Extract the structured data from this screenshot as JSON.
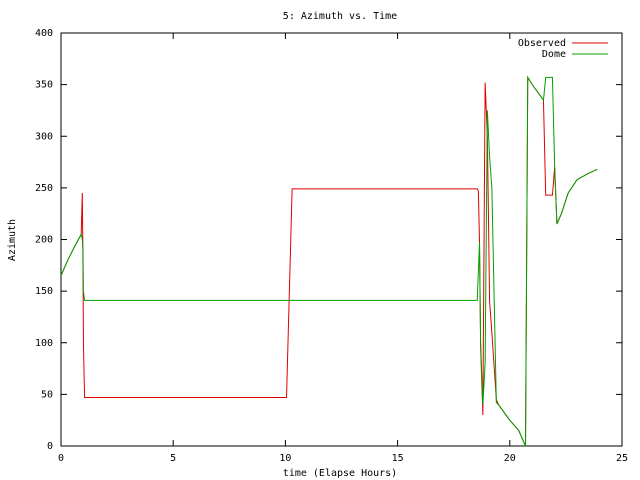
{
  "chart_data": {
    "type": "line",
    "title": "5: Azimuth vs. Time",
    "x_label": "time (Elapse Hours)",
    "y_label": "Azimuth",
    "x": [
      0,
      0.3,
      0.6,
      0.9,
      0.95,
      0.98,
      1.0,
      1.05,
      10.05,
      10.3,
      18.55,
      18.6,
      18.65,
      18.7,
      18.8,
      18.9,
      19.0,
      19.1,
      19.2,
      19.4,
      19.5,
      20.0,
      20.4,
      20.7,
      20.8,
      21.0,
      21.5,
      21.6,
      21.9,
      22.0,
      22.1,
      22.3,
      22.6,
      23.0,
      23.5,
      23.9
    ],
    "series": [
      {
        "name": "Observed",
        "color": "#e00000",
        "values": [
          165,
          180,
          193,
          205,
          245,
          175,
          100,
          47,
          47,
          249,
          249,
          247,
          197,
          95,
          30,
          352,
          300,
          140,
          110,
          45,
          40,
          25,
          15,
          0,
          357,
          350,
          335,
          243,
          243,
          270,
          215,
          225,
          245,
          258,
          264,
          268
        ]
      },
      {
        "name": "Dome",
        "color": "#00a000",
        "values": [
          165,
          180,
          193,
          205,
          200,
          190,
          150,
          141,
          141,
          141,
          141,
          170,
          197,
          100,
          40,
          80,
          325,
          280,
          250,
          42,
          40,
          25,
          15,
          0,
          357,
          350,
          335,
          357,
          357,
          270,
          215,
          225,
          245,
          258,
          264,
          268
        ]
      }
    ],
    "xlim": [
      0,
      25
    ],
    "xticks": [
      0,
      5,
      10,
      15,
      20,
      25
    ],
    "ylim": [
      0,
      400
    ],
    "yticks": [
      0,
      50,
      100,
      150,
      200,
      250,
      300,
      350,
      400
    ],
    "grid": false,
    "legend": "top-right"
  }
}
